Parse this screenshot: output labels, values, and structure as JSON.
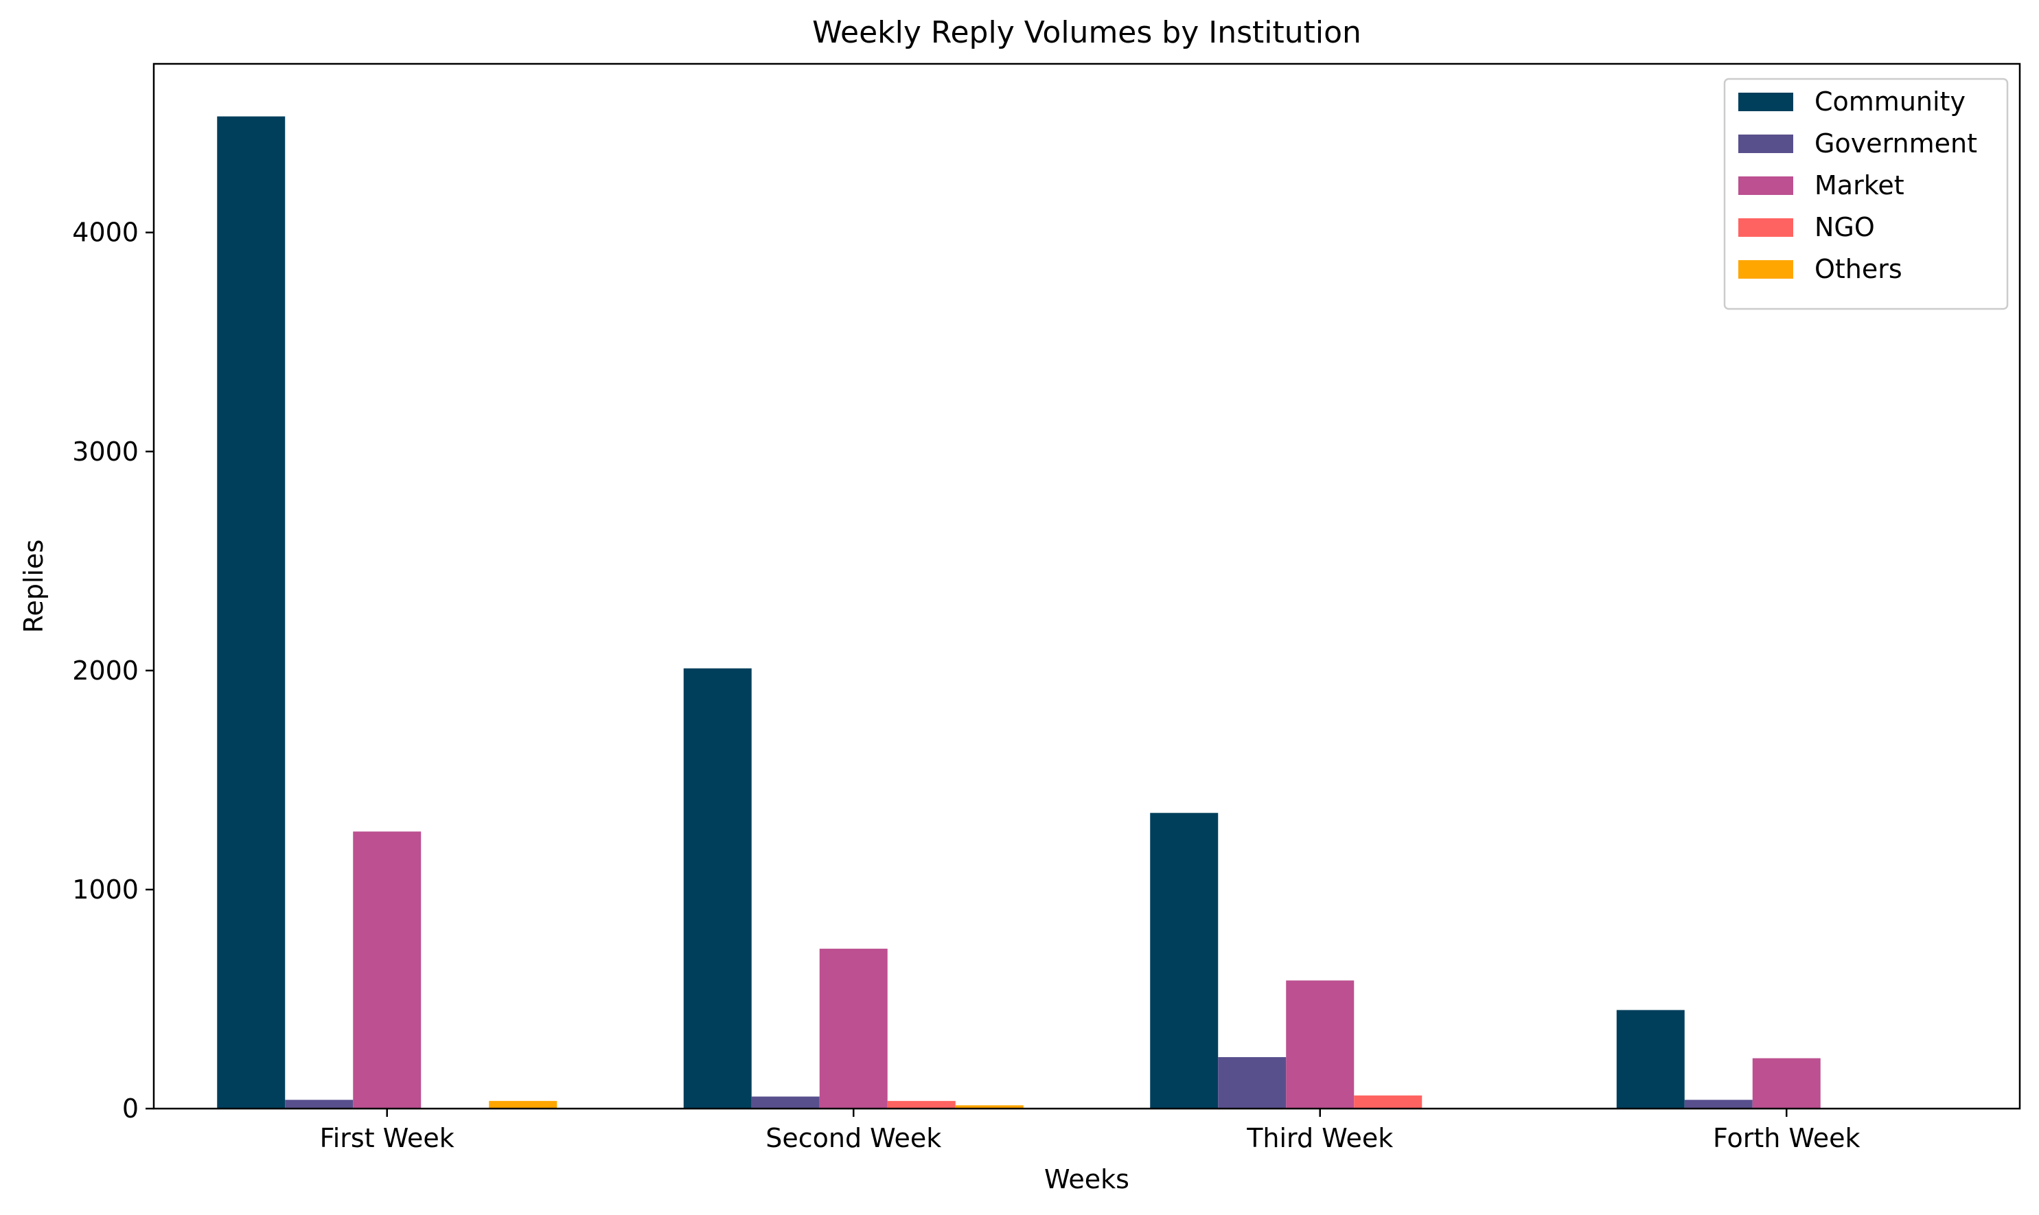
{
  "chart_data": {
    "type": "bar",
    "title": "Weekly Reply Volumes by Institution",
    "xlabel": "Weeks",
    "ylabel": "Replies",
    "categories": [
      "First Week",
      "Second Week",
      "Third Week",
      "Forth Week"
    ],
    "ylim": [
      0,
      4770
    ],
    "yticks": [
      0,
      1000,
      2000,
      3000,
      4000
    ],
    "legend_position": "top-right",
    "grid": false,
    "series": [
      {
        "name": "Community",
        "color": "#003f5c",
        "values": [
          4530,
          2010,
          1350,
          450
        ]
      },
      {
        "name": "Government",
        "color": "#58508d",
        "values": [
          40,
          55,
          235,
          40
        ]
      },
      {
        "name": "Market",
        "color": "#bc5090",
        "values": [
          1265,
          730,
          585,
          230
        ]
      },
      {
        "name": "NGO",
        "color": "#ff6361",
        "values": [
          0,
          35,
          60,
          0
        ]
      },
      {
        "name": "Others",
        "color": "#ffa600",
        "values": [
          35,
          15,
          0,
          0
        ]
      }
    ]
  }
}
